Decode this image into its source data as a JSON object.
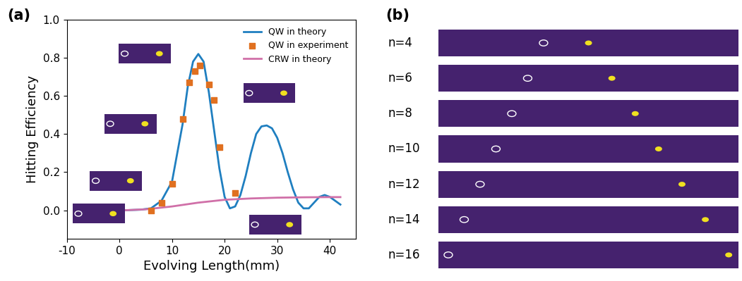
{
  "chart_data": {
    "type": "line",
    "panel_label": "(a)",
    "x_label": "Evolving Length(mm)",
    "y_label": "Hitting Efficiency",
    "xlim": [
      -10,
      45
    ],
    "xticks": [
      -10,
      0,
      10,
      20,
      30,
      40
    ],
    "ylim": [
      -0.15,
      1.0
    ],
    "yticks": [
      {
        "value": 0.0,
        "label": "0.0"
      },
      {
        "value": 0.2,
        "label": "0.2"
      },
      {
        "value": 0.4,
        "label": "0.4"
      },
      {
        "value": 0.6,
        "label": "0.6"
      },
      {
        "value": 0.8,
        "label": "0.8"
      },
      {
        "value": 1.0,
        "label": "1.0"
      }
    ],
    "legend": "upper right",
    "series": [
      {
        "name": "QW in theory",
        "type": "line",
        "line_style": "solid",
        "color": "#1f7fc0",
        "x": [
          1,
          4,
          6,
          8,
          10,
          12,
          13,
          14,
          15,
          16,
          17,
          18,
          19,
          20,
          21,
          22,
          23,
          24,
          25,
          26,
          27,
          28,
          29,
          30,
          31,
          32,
          33,
          34,
          35,
          36,
          37,
          38,
          39,
          40,
          41,
          42
        ],
        "values": [
          0.0,
          0.003,
          0.01,
          0.05,
          0.15,
          0.45,
          0.65,
          0.78,
          0.82,
          0.78,
          0.62,
          0.42,
          0.22,
          0.07,
          0.01,
          0.02,
          0.08,
          0.18,
          0.3,
          0.4,
          0.44,
          0.445,
          0.43,
          0.38,
          0.3,
          0.2,
          0.11,
          0.04,
          0.01,
          0.01,
          0.04,
          0.07,
          0.08,
          0.07,
          0.05,
          0.03
        ]
      },
      {
        "name": "QW in experiment",
        "type": "scatter",
        "marker": "s",
        "color": "#e07020",
        "x": [
          6,
          8,
          10,
          12,
          13.3,
          14.3,
          15.3,
          17,
          18,
          19,
          22
        ],
        "values": [
          0.0,
          0.04,
          0.14,
          0.48,
          0.67,
          0.73,
          0.76,
          0.66,
          0.58,
          0.33,
          0.09
        ]
      },
      {
        "name": "CRW in theory",
        "type": "line",
        "line_style": "solid",
        "color": "#d070a8",
        "x": [
          1,
          5,
          10,
          15,
          20,
          25,
          30,
          35,
          40,
          42
        ],
        "values": [
          0.0,
          0.005,
          0.02,
          0.04,
          0.055,
          0.062,
          0.066,
          0.068,
          0.069,
          0.069
        ]
      }
    ]
  },
  "image_panel": {
    "panel_label": "(b)",
    "rows": [
      "n=4",
      "n=6",
      "n=8",
      "n=10",
      "n=12",
      "n=14",
      "n=16"
    ]
  }
}
